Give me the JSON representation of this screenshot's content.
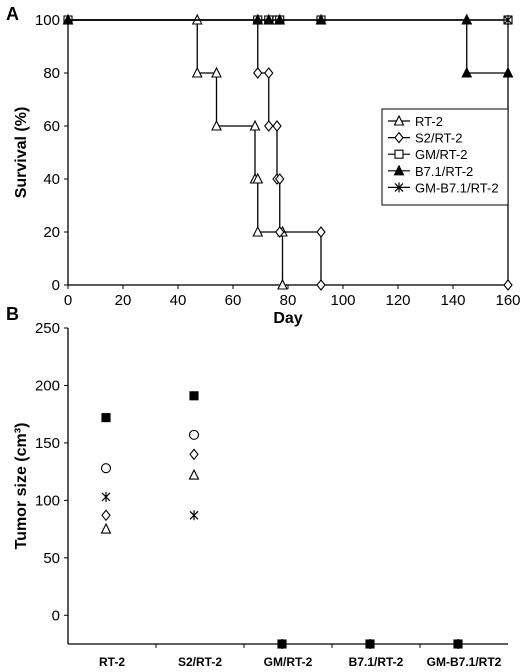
{
  "panels": {
    "a": {
      "letter": "A"
    },
    "b": {
      "letter": "B"
    }
  },
  "chart_data": [
    {
      "type": "line",
      "step": true,
      "title": "",
      "xlabel": "Day",
      "ylabel": "Survival (%)",
      "xlim": [
        0,
        160
      ],
      "ylim": [
        0,
        100
      ],
      "xticks": [
        0,
        20,
        40,
        60,
        80,
        100,
        120,
        140,
        160
      ],
      "yticks": [
        0,
        20,
        40,
        60,
        80,
        100
      ],
      "legend_position": "right",
      "series": [
        {
          "name": "RT-2",
          "marker": "triangle-open",
          "x": [
            0,
            47,
            54,
            68,
            69,
            78
          ],
          "y": [
            100,
            80,
            60,
            40,
            20,
            0
          ],
          "censored": []
        },
        {
          "name": "S2/RT-2",
          "marker": "diamond-open",
          "x": [
            0,
            69,
            73,
            76,
            77,
            92
          ],
          "y": [
            100,
            80,
            60,
            40,
            20,
            0
          ],
          "censored": [
            [
              160,
              0
            ]
          ]
        },
        {
          "name": "GM/RT-2",
          "marker": "square-open",
          "x": [
            0
          ],
          "y": [
            100
          ],
          "censored": [
            [
              0,
              100
            ],
            [
              69,
              100
            ],
            [
              73,
              100
            ],
            [
              76,
              100
            ],
            [
              77,
              100
            ],
            [
              92,
              100
            ],
            [
              160,
              100
            ]
          ]
        },
        {
          "name": "B7.1/RT-2",
          "marker": "triangle-filled",
          "x": [
            0,
            145
          ],
          "y": [
            100,
            80
          ],
          "censored": [
            [
              0,
              100
            ],
            [
              69,
              100
            ],
            [
              73,
              100
            ],
            [
              77,
              100
            ],
            [
              92,
              100
            ],
            [
              145,
              100
            ],
            [
              160,
              80
            ]
          ]
        },
        {
          "name": "GM-B7.1/RT-2",
          "marker": "star",
          "x": [
            0
          ],
          "y": [
            100
          ],
          "censored": [
            [
              160,
              100
            ]
          ]
        }
      ]
    },
    {
      "type": "scatter",
      "title": "",
      "xlabel": "",
      "ylabel": "Tumor size (cm³)",
      "categories": [
        "RT-2",
        "S2/RT-2",
        "GM/RT-2",
        "B7.1/RT-2",
        "GM-B7.1/RT2"
      ],
      "yticks": [
        0,
        50,
        100,
        150,
        200,
        250
      ],
      "ylim": [
        -25,
        250
      ],
      "points": [
        {
          "category": "RT-2",
          "values": [
            172,
            128,
            103,
            87,
            75
          ],
          "markers": [
            "square-filled",
            "circle-open",
            "star",
            "diamond-open",
            "triangle-open"
          ]
        },
        {
          "category": "S2/RT-2",
          "values": [
            191,
            157,
            140,
            122,
            87
          ],
          "markers": [
            "square-filled",
            "circle-open",
            "diamond-open",
            "triangle-open",
            "star"
          ]
        },
        {
          "category": "GM/RT-2",
          "values": [
            -25,
            -25
          ],
          "markers": [
            "square-filled",
            "star"
          ]
        },
        {
          "category": "B7.1/RT-2",
          "values": [
            -24,
            -25
          ],
          "markers": [
            "square-filled",
            "star"
          ]
        },
        {
          "category": "GM-B7.1/RT2",
          "values": [
            -25,
            -25
          ],
          "markers": [
            "square-filled",
            "star"
          ]
        }
      ]
    }
  ]
}
